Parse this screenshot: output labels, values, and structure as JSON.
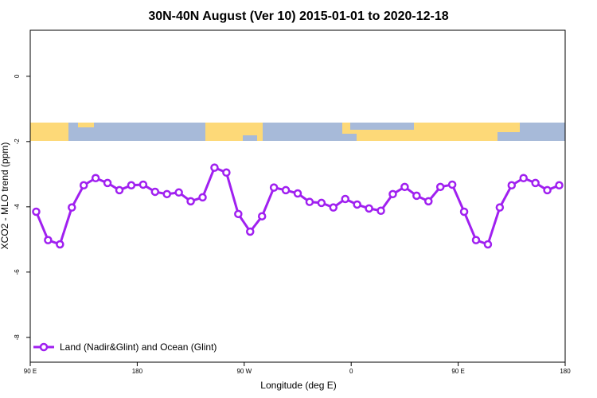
{
  "chart_data": {
    "type": "line",
    "title": "30N-40N August (Ver 10)   2015-01-01 to 2020-12-18",
    "xlabel": "Longitude (deg E)",
    "ylabel": "XCO2 - MLO trend (ppm)",
    "x": [
      95,
      105,
      115,
      125,
      135,
      145,
      155,
      165,
      175,
      185,
      195,
      205,
      215,
      225,
      235,
      245,
      255,
      265,
      275,
      285,
      295,
      305,
      315,
      325,
      335,
      345,
      355,
      365,
      375,
      385,
      395,
      405,
      415,
      425,
      435,
      445,
      455,
      465,
      475,
      485,
      495,
      505,
      515,
      525,
      535
    ],
    "series": [
      {
        "name": "Land (Nadir&Glint) and Ocean (Glint)",
        "color": "#a020f0",
        "values": [
          -4.15,
          -5.02,
          -5.15,
          -4.02,
          -3.34,
          -3.12,
          -3.27,
          -3.49,
          -3.34,
          -3.32,
          -3.54,
          -3.61,
          -3.56,
          -3.83,
          -3.71,
          -2.8,
          -2.95,
          -4.22,
          -4.76,
          -4.29,
          -3.41,
          -3.49,
          -3.59,
          -3.85,
          -3.88,
          -4.02,
          -3.76,
          -3.93,
          -4.05,
          -4.12,
          -3.61,
          -3.39,
          -3.66,
          -3.83,
          -3.39,
          -3.32,
          -4.15,
          -5.02,
          -5.15,
          -4.02,
          -3.34,
          -3.12,
          -3.27,
          -3.49,
          -3.34
        ]
      }
    ],
    "xlim": [
      90,
      540
    ],
    "xticks": [
      {
        "value": 90,
        "label": "90 E"
      },
      {
        "value": 180,
        "label": "180"
      },
      {
        "value": 270,
        "label": "90 W"
      },
      {
        "value": 360,
        "label": "0"
      },
      {
        "value": 450,
        "label": "90 E"
      },
      {
        "value": 540,
        "label": "180"
      }
    ],
    "ylim": [
      -8.76,
      1.41
    ],
    "yticks": [
      -8,
      -6,
      -4,
      -2,
      0
    ],
    "legend": "bottom-left"
  }
}
